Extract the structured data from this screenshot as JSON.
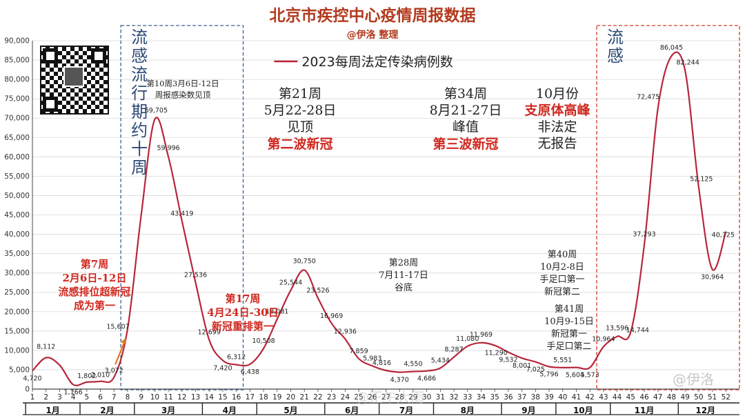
{
  "header": {
    "title": "北京市疾控中心疫情周报数据",
    "subtitle": "@伊洛 整理"
  },
  "watermark": {
    "text": "@伊洛",
    "bottom_text": "@正午大雨"
  },
  "colors": {
    "line": "#b7253a",
    "title": "#b23a1e",
    "red_text": "#d0281f",
    "blue_text": "#2c4a75",
    "box_blue": "#3b5f8f",
    "box_red": "#d23b2e"
  },
  "chart_data": {
    "type": "line",
    "title": "北京市疾控中心疫情周报数据",
    "legend": "2023每周法定传染病例数",
    "x": [
      1,
      2,
      3,
      4,
      5,
      6,
      7,
      8,
      9,
      10,
      11,
      12,
      13,
      14,
      15,
      16,
      17,
      18,
      19,
      20,
      21,
      22,
      23,
      24,
      25,
      26,
      27,
      28,
      29,
      30,
      31,
      32,
      33,
      34,
      35,
      36,
      37,
      38,
      39,
      40,
      41,
      42,
      43,
      44,
      45,
      46,
      47,
      48,
      49,
      50,
      51,
      52
    ],
    "series": [
      {
        "name": "2023每周法定传染病例数",
        "values": [
          4720,
          8112,
          6200,
          1166,
          1802,
          2010,
          3072,
          15607,
          45000,
          69705,
          59996,
          43419,
          27536,
          12699,
          7420,
          6312,
          6438,
          10508,
          18081,
          25544,
          30750,
          23526,
          16969,
          12936,
          7859,
          5983,
          4816,
          4370,
          4550,
          4686,
          5434,
          8287,
          11080,
          11969,
          11290,
          9532,
          8001,
          7025,
          5796,
          5551,
          5604,
          5573,
          10964,
          13596,
          14744,
          37293,
          72475,
          86045,
          82244,
          52125,
          30964,
          40725
        ]
      }
    ],
    "data_labels": [
      {
        "x": 1,
        "label": "4,720"
      },
      {
        "x": 2,
        "label": "8,112"
      },
      {
        "x": 4,
        "label": "1,166"
      },
      {
        "x": 5,
        "label": "1,802"
      },
      {
        "x": 6,
        "label": "2,010"
      },
      {
        "x": 7,
        "label": "3,072"
      },
      {
        "x": 8,
        "label": "15,607"
      },
      {
        "x": 10,
        "label": "69,705"
      },
      {
        "x": 11,
        "label": "59,996"
      },
      {
        "x": 12,
        "label": "43,419"
      },
      {
        "x": 13,
        "label": "27,536"
      },
      {
        "x": 14,
        "label": "12,699"
      },
      {
        "x": 15,
        "label": "7,420"
      },
      {
        "x": 16,
        "label": "6,312"
      },
      {
        "x": 17,
        "label": "6,438"
      },
      {
        "x": 18,
        "label": "10,508"
      },
      {
        "x": 19,
        "label": "18,081"
      },
      {
        "x": 20,
        "label": "25,544"
      },
      {
        "x": 21,
        "label": "30,750"
      },
      {
        "x": 22,
        "label": "23,526"
      },
      {
        "x": 23,
        "label": "16,969"
      },
      {
        "x": 24,
        "label": "12,936"
      },
      {
        "x": 25,
        "label": "7,859"
      },
      {
        "x": 26,
        "label": "5,983"
      },
      {
        "x": 27,
        "label": "4,816"
      },
      {
        "x": 28,
        "label": "4,370"
      },
      {
        "x": 29,
        "label": "4,550"
      },
      {
        "x": 30,
        "label": "4,686"
      },
      {
        "x": 31,
        "label": "5,434"
      },
      {
        "x": 32,
        "label": "8,287"
      },
      {
        "x": 33,
        "label": "11,080"
      },
      {
        "x": 34,
        "label": "11,969"
      },
      {
        "x": 35,
        "label": "11,290"
      },
      {
        "x": 36,
        "label": "9,532"
      },
      {
        "x": 37,
        "label": "8,001"
      },
      {
        "x": 38,
        "label": "7,025"
      },
      {
        "x": 39,
        "label": "5,796"
      },
      {
        "x": 40,
        "label": "5,551"
      },
      {
        "x": 41,
        "label": "5,604"
      },
      {
        "x": 42,
        "label": "5,573"
      },
      {
        "x": 43,
        "label": "10,964"
      },
      {
        "x": 44,
        "label": "13,596"
      },
      {
        "x": 45,
        "label": "14,744"
      },
      {
        "x": 46,
        "label": "37,293"
      },
      {
        "x": 47,
        "label": "72,475"
      },
      {
        "x": 48,
        "label": "86,045"
      },
      {
        "x": 49,
        "label": "82,244"
      },
      {
        "x": 50,
        "label": "52,125"
      },
      {
        "x": 51,
        "label": "30,964"
      },
      {
        "x": 52,
        "label": "40,725"
      }
    ],
    "ylim": [
      0,
      90000
    ],
    "y_ticks": [
      0,
      5000,
      10000,
      15000,
      20000,
      25000,
      30000,
      35000,
      40000,
      45000,
      50000,
      55000,
      60000,
      65000,
      70000,
      75000,
      80000,
      85000,
      90000
    ],
    "y_tick_labels": [
      "0",
      "5,000",
      "10,000",
      "15,000",
      "20,000",
      "25,000",
      "30,000",
      "35,000",
      "40,000",
      "45,000",
      "50,000",
      "55,000",
      "60,000",
      "65,000",
      "70,000",
      "75,000",
      "80,000",
      "85,000",
      "90,000"
    ],
    "x_tick_labels": [
      "1",
      "2",
      "3",
      "4",
      "5",
      "6",
      "7",
      "8",
      "9",
      "10",
      "11",
      "12",
      "13",
      "14",
      "15",
      "16",
      "17",
      "18",
      "19",
      "20",
      "21",
      "22",
      "23",
      "24",
      "25",
      "26",
      "27",
      "28",
      "29",
      "30",
      "31",
      "32",
      "33",
      "34",
      "35",
      "36",
      "37",
      "38",
      "39",
      "40",
      "41",
      "42",
      "43",
      "44",
      "45",
      "46",
      "47",
      "48",
      "49",
      "50",
      "51",
      "52"
    ],
    "months": [
      {
        "label": "1月",
        "start": 1,
        "end": 4
      },
      {
        "label": "2月",
        "start": 5,
        "end": 8
      },
      {
        "label": "3月",
        "start": 9,
        "end": 13
      },
      {
        "label": "4月",
        "start": 14,
        "end": 17
      },
      {
        "label": "5月",
        "start": 18,
        "end": 22
      },
      {
        "label": "6月",
        "start": 23,
        "end": 26
      },
      {
        "label": "7月",
        "start": 27,
        "end": 30
      },
      {
        "label": "8月",
        "start": 31,
        "end": 35
      },
      {
        "label": "9月",
        "start": 36,
        "end": 39
      },
      {
        "label": "10月",
        "start": 40,
        "end": 43
      },
      {
        "label": "11月",
        "start": 44,
        "end": 48
      },
      {
        "label": "12月",
        "start": 49,
        "end": 52
      }
    ],
    "flu_boxes": [
      {
        "start": 7.5,
        "end": 16.5,
        "label": "流感流行期约十周",
        "color": "blue"
      },
      {
        "start": 42.5,
        "end": 53,
        "label": "流感",
        "color": "red"
      }
    ],
    "annotations": [
      {
        "lines": [
          "第10周3月6日-12日",
          "周报感染数见顶"
        ],
        "color": "dark",
        "size": "small"
      },
      {
        "lines": [
          "第7周",
          "2月6日-12日",
          "流感排位超新冠",
          "成为第一"
        ],
        "color": "red",
        "size": "medium"
      },
      {
        "lines": [
          "第17周",
          "4月24日-30日",
          "新冠重排第一"
        ],
        "color": "red",
        "size": "medium"
      },
      {
        "lines": [
          "第21周",
          "5月22-28日",
          "见顶"
        ],
        "color": "dark",
        "size": "large"
      },
      {
        "lines": [
          "第二波新冠"
        ],
        "color": "red",
        "size": "large"
      },
      {
        "lines": [
          "第34周",
          "8月21-27日",
          "峰值"
        ],
        "color": "dark",
        "size": "large"
      },
      {
        "lines": [
          "第三波新冠"
        ],
        "color": "red",
        "size": "large"
      },
      {
        "lines": [
          "10月份"
        ],
        "color": "dark",
        "size": "large"
      },
      {
        "lines": [
          "支原体高峰"
        ],
        "color": "red",
        "size": "large"
      },
      {
        "lines": [
          "非法定",
          "无报告"
        ],
        "color": "dark",
        "size": "large"
      },
      {
        "lines": [
          "第28周",
          "7月11-17日",
          "谷底"
        ],
        "color": "dark",
        "size": "medium"
      },
      {
        "lines": [
          "第40周",
          "10月2-8日",
          "手足口第一",
          "新冠第二"
        ],
        "color": "dark",
        "size": "medium"
      },
      {
        "lines": [
          "第41周",
          "10月9-15日",
          "新冠第一",
          "手足口第二"
        ],
        "color": "dark",
        "size": "medium"
      }
    ]
  }
}
